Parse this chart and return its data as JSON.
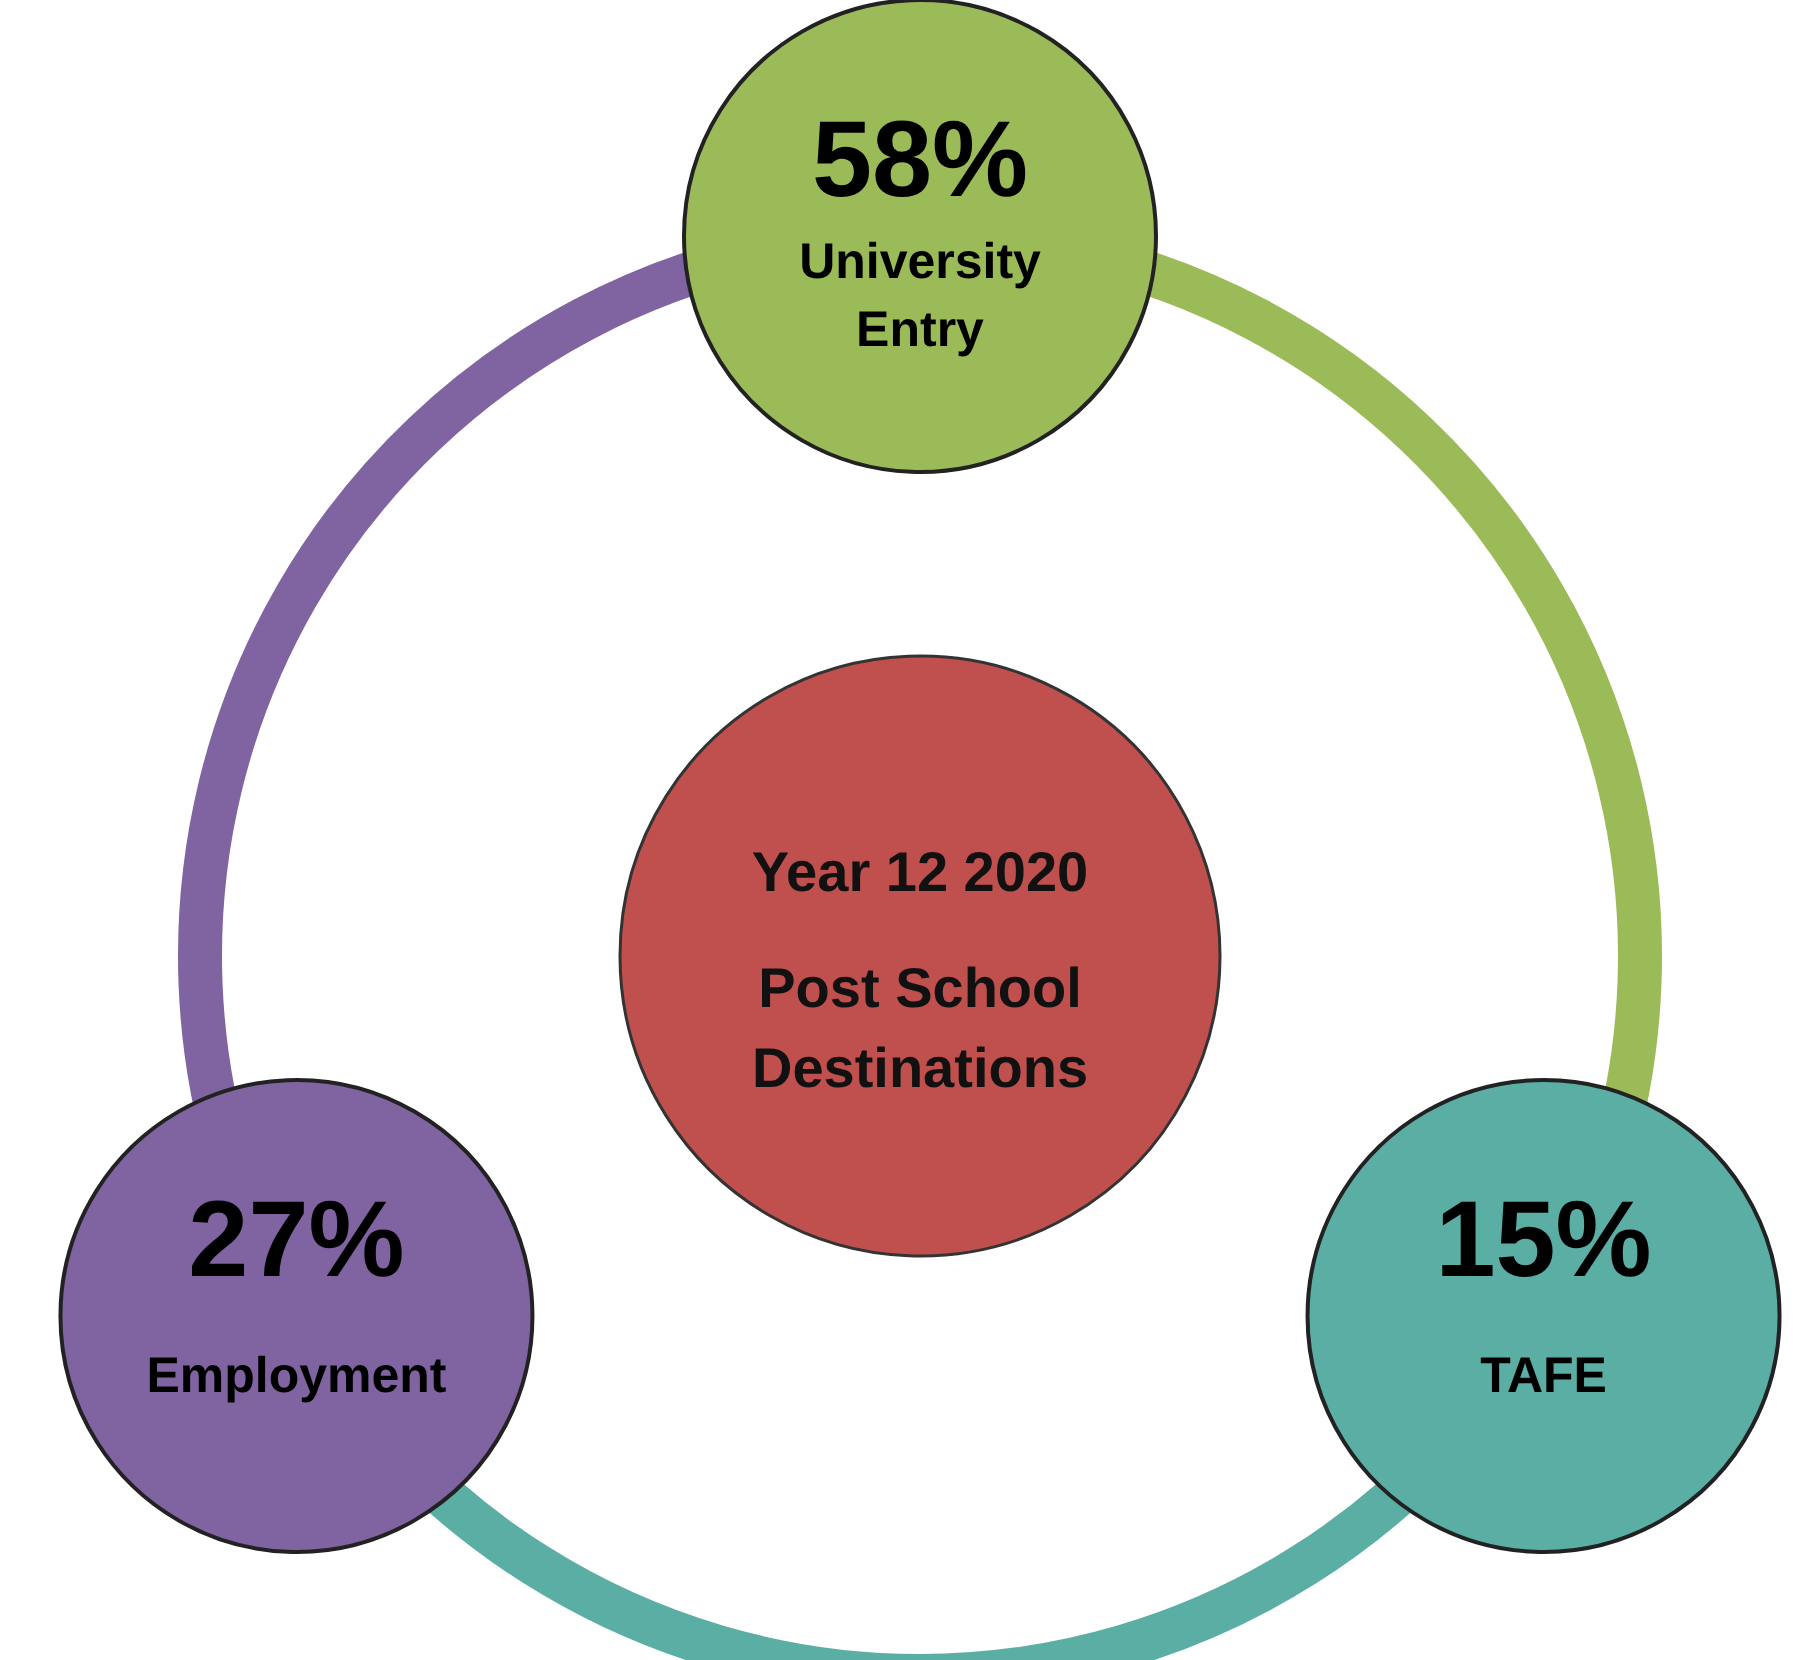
{
  "chart_data": {
    "type": "other",
    "title": "Year 12 2020",
    "subtitle": "Post School Destinations",
    "categories": [
      "University Entry",
      "TAFE",
      "Employment"
    ],
    "values": [
      58,
      15,
      27
    ],
    "value_labels": [
      "58%",
      "15%",
      "27%"
    ],
    "colors": [
      "#9bbb59",
      "#5aaea3",
      "#8064a2"
    ]
  }
}
